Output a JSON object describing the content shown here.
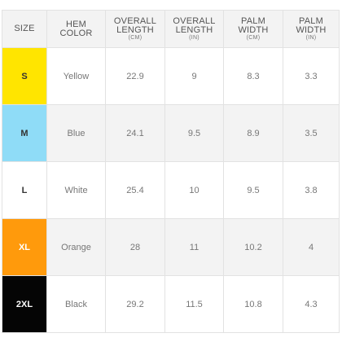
{
  "headers": [
    {
      "line1": "SIZE",
      "line2": "",
      "unit": ""
    },
    {
      "line1": "HEM",
      "line2": "COLOR",
      "unit": ""
    },
    {
      "line1": "OVERALL",
      "line2": "LENGTH",
      "unit": "(CM)"
    },
    {
      "line1": "OVERALL",
      "line2": "LENGTH",
      "unit": "(IN)"
    },
    {
      "line1": "PALM",
      "line2": "WIDTH",
      "unit": "(CM)"
    },
    {
      "line1": "PALM",
      "line2": "WIDTH",
      "unit": "(IN)"
    }
  ],
  "rows": [
    {
      "size": "S",
      "swatch": "#ffe500",
      "text_color": "#333333",
      "hem_color": "Yellow",
      "length_cm": "22.9",
      "length_in": "9",
      "palm_cm": "8.3",
      "palm_in": "3.3"
    },
    {
      "size": "M",
      "swatch": "#8fdcf7",
      "text_color": "#333333",
      "hem_color": "Blue",
      "length_cm": "24.1",
      "length_in": "9.5",
      "palm_cm": "8.9",
      "palm_in": "3.5"
    },
    {
      "size": "L",
      "swatch": "#ffffff",
      "text_color": "#333333",
      "hem_color": "White",
      "length_cm": "25.4",
      "length_in": "10",
      "palm_cm": "9.5",
      "palm_in": "3.8"
    },
    {
      "size": "XL",
      "swatch": "#ff9a0c",
      "text_color": "#ffffff",
      "hem_color": "Orange",
      "length_cm": "28",
      "length_in": "11",
      "palm_cm": "10.2",
      "palm_in": "4"
    },
    {
      "size": "2XL",
      "swatch": "#050505",
      "text_color": "#ffffff",
      "hem_color": "Black",
      "length_cm": "29.2",
      "length_in": "11.5",
      "palm_cm": "10.8",
      "palm_in": "4.3"
    }
  ]
}
